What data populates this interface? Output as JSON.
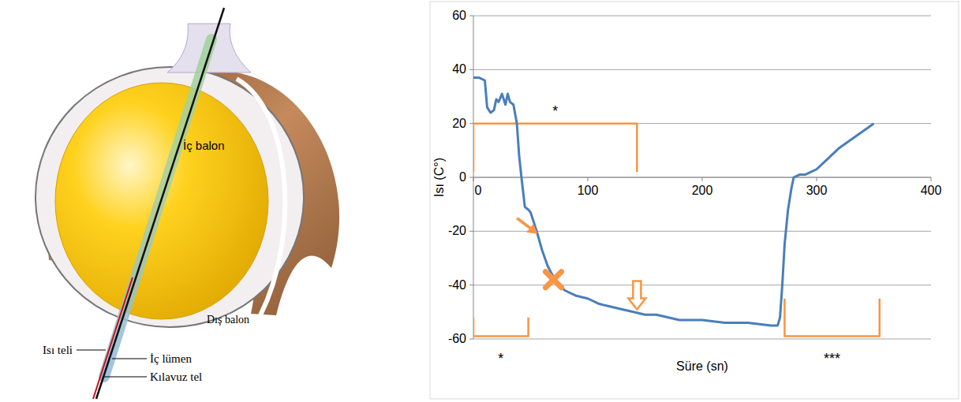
{
  "diagram": {
    "inner_balloon": "İç balon",
    "outer_balloon": "Dış balon",
    "thermo_wire": "Isı teli",
    "inner_lumen": "İç lümen",
    "guide_wire": "Kılavuz tel"
  },
  "chart_data": {
    "type": "line",
    "y_label": "Isı (C°)",
    "x_label": "Süre (sn)",
    "x": [
      0,
      5,
      10,
      12,
      15,
      18,
      20,
      22,
      25,
      28,
      30,
      32,
      35,
      38,
      40,
      42,
      45,
      48,
      50,
      53,
      56,
      60,
      65,
      70,
      75,
      80,
      90,
      100,
      110,
      120,
      130,
      140,
      150,
      160,
      180,
      200,
      220,
      240,
      260,
      266,
      268,
      270,
      272,
      275,
      278,
      280,
      285,
      290,
      295,
      300,
      305,
      310,
      320,
      330,
      340,
      350
    ],
    "values": [
      37,
      37,
      36,
      26,
      24,
      25,
      29,
      28,
      31,
      27,
      31,
      28,
      27,
      20,
      8,
      0,
      -11,
      -12,
      -13,
      -17,
      -21,
      -27,
      -33,
      -37,
      -40,
      -42,
      -44,
      -45,
      -47,
      -48,
      -49,
      -50,
      -51,
      -51,
      -53,
      -53,
      -54,
      -54,
      -55,
      -55,
      -52,
      -40,
      -25,
      -12,
      -4,
      0,
      1,
      1,
      2,
      3,
      5,
      7,
      11,
      14,
      17,
      20
    ],
    "color": "#4a7ebb",
    "xlim": [
      0,
      400
    ],
    "xticks": [
      0,
      100,
      200,
      300,
      400
    ],
    "ylim": [
      -60,
      60
    ],
    "yticks": [
      -60,
      -40,
      -20,
      0,
      20,
      40,
      60
    ],
    "grid": true,
    "annotations": [
      {
        "text": "*",
        "x_start": 0,
        "x_end": 143,
        "y": 20,
        "y_end": 2
      },
      {
        "text": "*",
        "x_start": 0,
        "x_end": 48,
        "y": -59,
        "y_end": -52
      },
      {
        "text": "***",
        "x_start": 272,
        "x_end": 355,
        "y": -59,
        "y_end": -45
      }
    ],
    "markers": [
      {
        "shape": "arrow",
        "x": 56,
        "y": -21
      },
      {
        "shape": "cross",
        "x": 70,
        "y": -38
      },
      {
        "shape": "hollow-arrow",
        "x": 143,
        "y": -49
      }
    ],
    "annotation_color": "#f79646"
  }
}
